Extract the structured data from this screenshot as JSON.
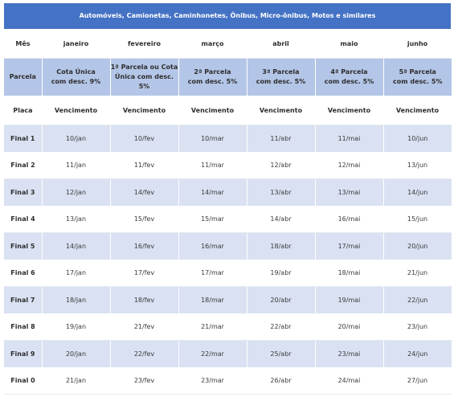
{
  "title": "Automóveis, Camionetas, Caminhonetes, Ônibus, Micro-ônibus, Motos e similares",
  "header": {
    "mes_label": "Mês",
    "months": [
      "janeiro",
      "fevereiro",
      "março",
      "abril",
      "maio",
      "junho"
    ],
    "parcela_label": "Parcela",
    "parcelas": [
      [
        "Cota Única",
        "com desc. 9%"
      ],
      [
        "1ª Parcela ou Cota",
        "Única com desc. 5%"
      ],
      [
        "2ª Parcela",
        "com desc. 5%"
      ],
      [
        "3ª Parcela",
        "com desc. 5%"
      ],
      [
        "4ª Parcela",
        "com desc. 5%"
      ],
      [
        "5ª Parcela",
        "com desc. 5%"
      ]
    ],
    "placa_label": "Placa",
    "vencimento_label": "Vencimento"
  },
  "rows": [
    {
      "plate": "Final 1",
      "dates": [
        "10/jan",
        "10/fev",
        "10/mar",
        "11/abr",
        "11/mai",
        "10/jun"
      ]
    },
    {
      "plate": "Final 2",
      "dates": [
        "11/jan",
        "11/fev",
        "11/mar",
        "12/abr",
        "12/mai",
        "13/jun"
      ]
    },
    {
      "plate": "Final 3",
      "dates": [
        "12/jan",
        "14/fev",
        "14/mar",
        "13/abr",
        "13/mai",
        "14/jun"
      ]
    },
    {
      "plate": "Final 4",
      "dates": [
        "13/jan",
        "15/fev",
        "15/mar",
        "14/abr",
        "16/mai",
        "15/jun"
      ]
    },
    {
      "plate": "Final 5",
      "dates": [
        "14/jan",
        "16/fev",
        "16/mar",
        "18/abr",
        "17/mai",
        "20/jun"
      ]
    },
    {
      "plate": "Final 6",
      "dates": [
        "17/jan",
        "17/fev",
        "17/mar",
        "19/abr",
        "18/mai",
        "21/jun"
      ]
    },
    {
      "plate": "Final 7",
      "dates": [
        "18/jan",
        "18/fev",
        "18/mar",
        "20/abr",
        "19/mai",
        "22/jun"
      ]
    },
    {
      "plate": "Final 8",
      "dates": [
        "19/jan",
        "21/fev",
        "21/mar",
        "22/abr",
        "20/mai",
        "23/jun"
      ]
    },
    {
      "plate": "Final 9",
      "dates": [
        "20/jan",
        "22/fev",
        "22/mar",
        "25/abr",
        "23/mai",
        "24/jun"
      ]
    },
    {
      "plate": "Final 0",
      "dates": [
        "21/jan",
        "23/fev",
        "23/mar",
        "26/abr",
        "24/mai",
        "27/jun"
      ]
    }
  ]
}
